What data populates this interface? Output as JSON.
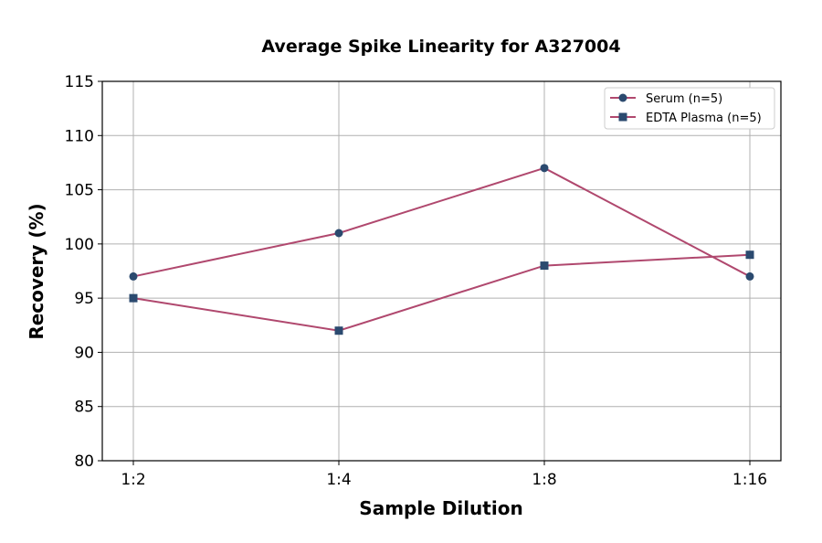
{
  "chart_data": {
    "type": "line",
    "title": "Average Spike Linearity for A327004",
    "xlabel": "Sample Dilution",
    "ylabel": "Recovery (%)",
    "categories": [
      "1:2",
      "1:4",
      "1:8",
      "1:16"
    ],
    "ylim": [
      80,
      115
    ],
    "yticks": [
      80,
      85,
      90,
      95,
      100,
      105,
      110,
      115
    ],
    "grid": true,
    "legend_position": "top-right",
    "series": [
      {
        "name": "Serum (n=5)",
        "marker": "circle",
        "values": [
          97,
          101,
          107,
          97
        ]
      },
      {
        "name": "EDTA Plasma (n=5)",
        "marker": "square",
        "values": [
          95,
          92,
          98,
          99
        ]
      }
    ],
    "colors": {
      "line": "#b0486e",
      "marker": "#2b4a6f",
      "grid": "#b0b0b0"
    }
  }
}
